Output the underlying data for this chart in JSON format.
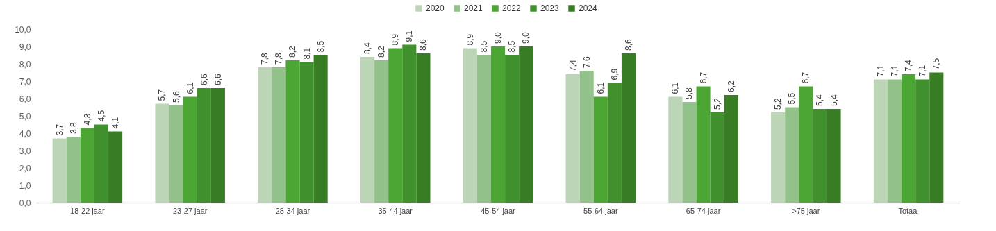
{
  "chart_data": {
    "type": "bar",
    "categories": [
      "18-22 jaar",
      "23-27 jaar",
      "28-34 jaar",
      "35-44 jaar",
      "45-54 jaar",
      "55-64 jaar",
      "65-74 jaar",
      ">75 jaar",
      "Totaal"
    ],
    "ylim": [
      0,
      10
    ],
    "yticks": [
      {
        "value": 0,
        "label": "0,0"
      },
      {
        "value": 1,
        "label": "1,0"
      },
      {
        "value": 2,
        "label": "2,0"
      },
      {
        "value": 3,
        "label": "3,0"
      },
      {
        "value": 4,
        "label": "4,0"
      },
      {
        "value": 5,
        "label": "5,0"
      },
      {
        "value": 6,
        "label": "6,0"
      },
      {
        "value": 7,
        "label": "7,0"
      },
      {
        "value": 8,
        "label": "8,0"
      },
      {
        "value": 9,
        "label": "9,0"
      },
      {
        "value": 10,
        "label": "10,0"
      }
    ],
    "grid": false,
    "legend": "top",
    "series": [
      {
        "name": "2020",
        "color": "#bcd5b6",
        "values": [
          3.7,
          5.7,
          7.8,
          8.4,
          8.9,
          7.4,
          6.1,
          5.2,
          7.1
        ],
        "value_labels": [
          "3,7",
          "5,7",
          "7,8",
          "8,4",
          "8,9",
          "7,4",
          "6,1",
          "5,2",
          "7,1"
        ]
      },
      {
        "name": "2021",
        "color": "#92c189",
        "values": [
          3.8,
          5.6,
          7.8,
          8.2,
          8.5,
          7.6,
          5.8,
          5.5,
          7.1
        ],
        "value_labels": [
          "3,8",
          "5,6",
          "7,8",
          "8,2",
          "8,5",
          "7,6",
          "5,8",
          "5,5",
          "7,1"
        ]
      },
      {
        "name": "2022",
        "color": "#4ca633",
        "values": [
          4.3,
          6.1,
          8.2,
          8.9,
          9.0,
          6.1,
          6.7,
          6.7,
          7.4
        ],
        "value_labels": [
          "4,3",
          "6,1",
          "8,2",
          "8,9",
          "9,0",
          "6,1",
          "6,7",
          "6,7",
          "7,4"
        ]
      },
      {
        "name": "2023",
        "color": "#40912d",
        "values": [
          4.5,
          6.6,
          8.1,
          9.1,
          8.5,
          6.9,
          5.2,
          5.4,
          7.1
        ],
        "value_labels": [
          "4,5",
          "6,6",
          "8,1",
          "9,1",
          "8,5",
          "6,9",
          "5,2",
          "5,4",
          "7,1"
        ]
      },
      {
        "name": "2024",
        "color": "#387c24",
        "values": [
          4.1,
          6.6,
          8.5,
          8.6,
          9.0,
          8.6,
          6.2,
          5.4,
          7.5
        ],
        "value_labels": [
          "4,1",
          "6,6",
          "8,5",
          "8,6",
          "9,0",
          "8,6",
          "6,2",
          "5,4",
          "7,5"
        ]
      }
    ]
  }
}
